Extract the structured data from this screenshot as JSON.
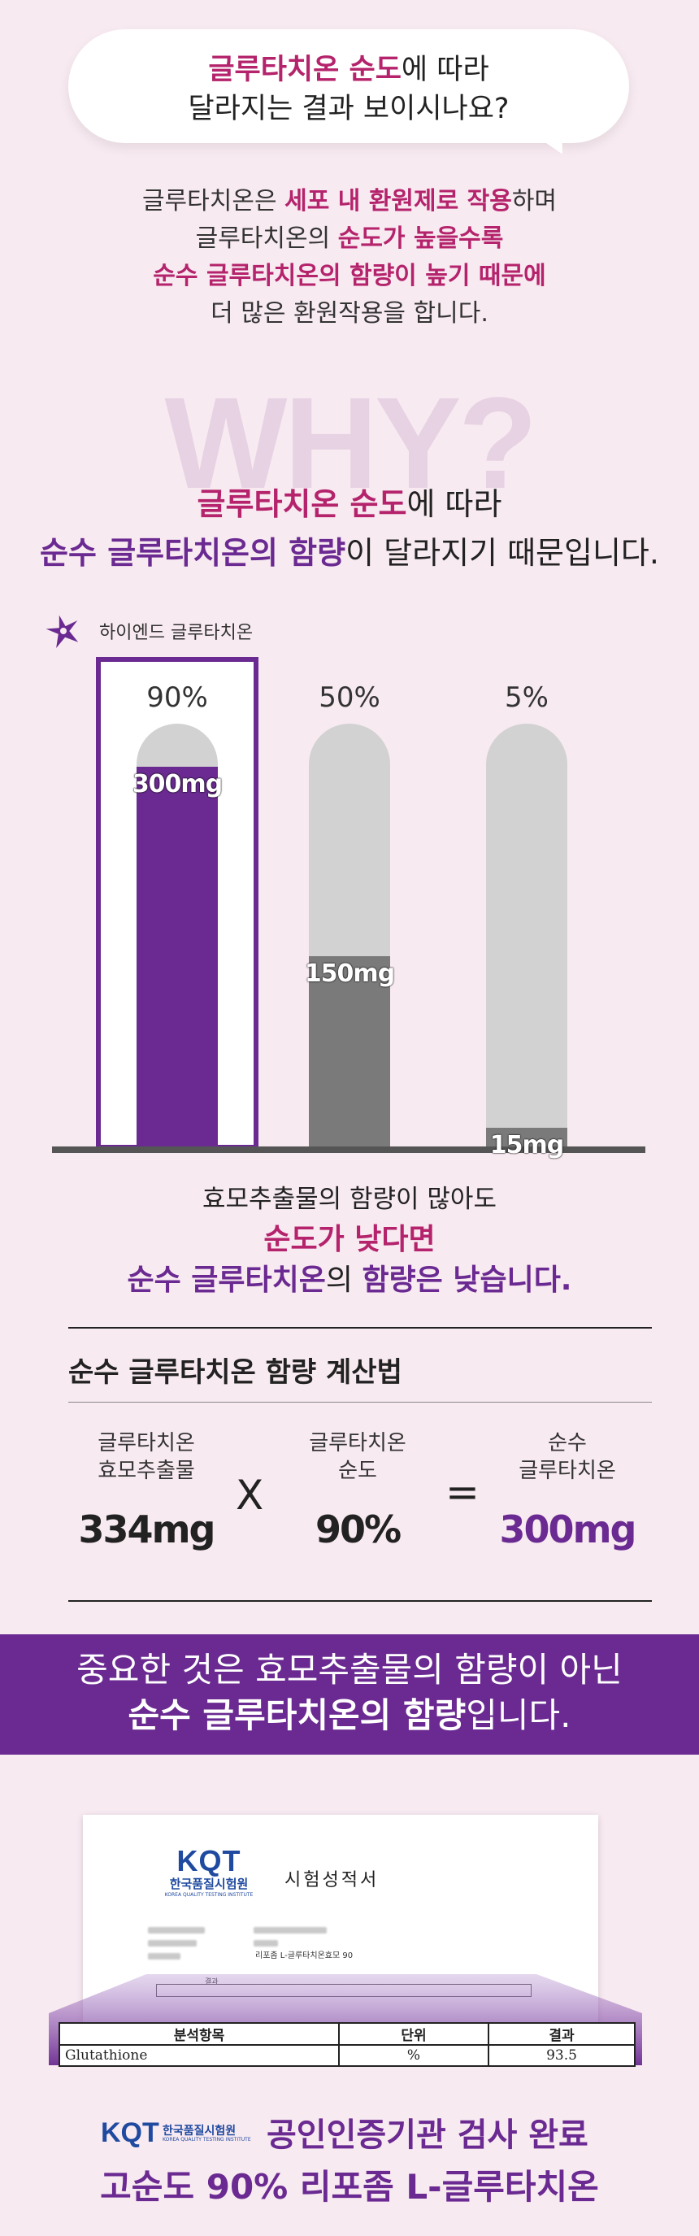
{
  "bubble": {
    "line1_mag": "글루타치온 순도",
    "line1_rest": "에 따라",
    "line2": "달라지는 결과 보이시나요?"
  },
  "intro": {
    "l1_a": "글루타치온은 ",
    "l1_b": "세포 내 환원제로 작용",
    "l1_c": "하며",
    "l2_a": "글루타치온의 ",
    "l2_b": "순도가 높을수록",
    "l3": "순수 글루타치온의 함량이 높기 때문에",
    "l4": "더 많은 환원작용을 합니다."
  },
  "why": "WHY?",
  "reason": {
    "l1_mag": "글루타치온 순도",
    "l1_rest": "에 따라",
    "l2_pur": "순수 글루타치온의 함량",
    "l2_rest": "이 달라지기 때문입니다."
  },
  "chart_data": {
    "type": "bar",
    "legend": "하이엔드 글루타치온",
    "categories": [
      "90%",
      "50%",
      "5%"
    ],
    "values": [
      300,
      150,
      15
    ],
    "value_labels": [
      "300mg",
      "150mg",
      "15mg"
    ],
    "ylim": [
      0,
      334
    ],
    "highlighted": "90%"
  },
  "colors": {
    "purple": "#6a2a91",
    "magenta": "#b4236b",
    "gray_fill": "#7a7a7a",
    "bar_bg": "#d2d2d2"
  },
  "middle": {
    "l1": "효모추출물의 함량이 많아도",
    "l2": "순도가 낮다면",
    "l3_pur1": "순수 글루타치온",
    "l3_dk": "의 ",
    "l3_pur2": "함량은 낮습니다."
  },
  "calc": {
    "title": "순수 글루타치온 함량 계산법",
    "col1_l1": "글루타치온",
    "col1_l2": "효모추출물",
    "col1_val": "334mg",
    "op1": "X",
    "col2_l1": "글루타치온",
    "col2_l2": "순도",
    "col2_val": "90%",
    "op2": "=",
    "col3_l1": "순수",
    "col3_l2": "글루타치온",
    "col3_val": "300mg"
  },
  "banner": {
    "l1": "중요한 것은 효모추출물의 함량이 아닌",
    "l2_bold": "순수 글루타치온의 함량",
    "l2_rest": "입니다."
  },
  "report": {
    "logo": "KQT",
    "org_kr": "한국품질시험원",
    "org_en": "KOREA QUALITY TESTING INSTITUTE",
    "doc_title": "시험성적서",
    "sample_row": "리포좀 L-글루타치온효모 90",
    "result_caption": "결과",
    "table_headers": [
      "분석항목",
      "단위",
      "결과"
    ],
    "table_row": [
      "Glutathione",
      "%",
      "93.5"
    ]
  },
  "footer": {
    "logo": "KQT",
    "org_kr": "한국품질시험원",
    "org_en": "KOREA QUALITY TESTING INSTITUTE",
    "l1": "공인인증기관 검사 완료",
    "l2": "고순도 90% 리포좀 L-글루타치온"
  }
}
